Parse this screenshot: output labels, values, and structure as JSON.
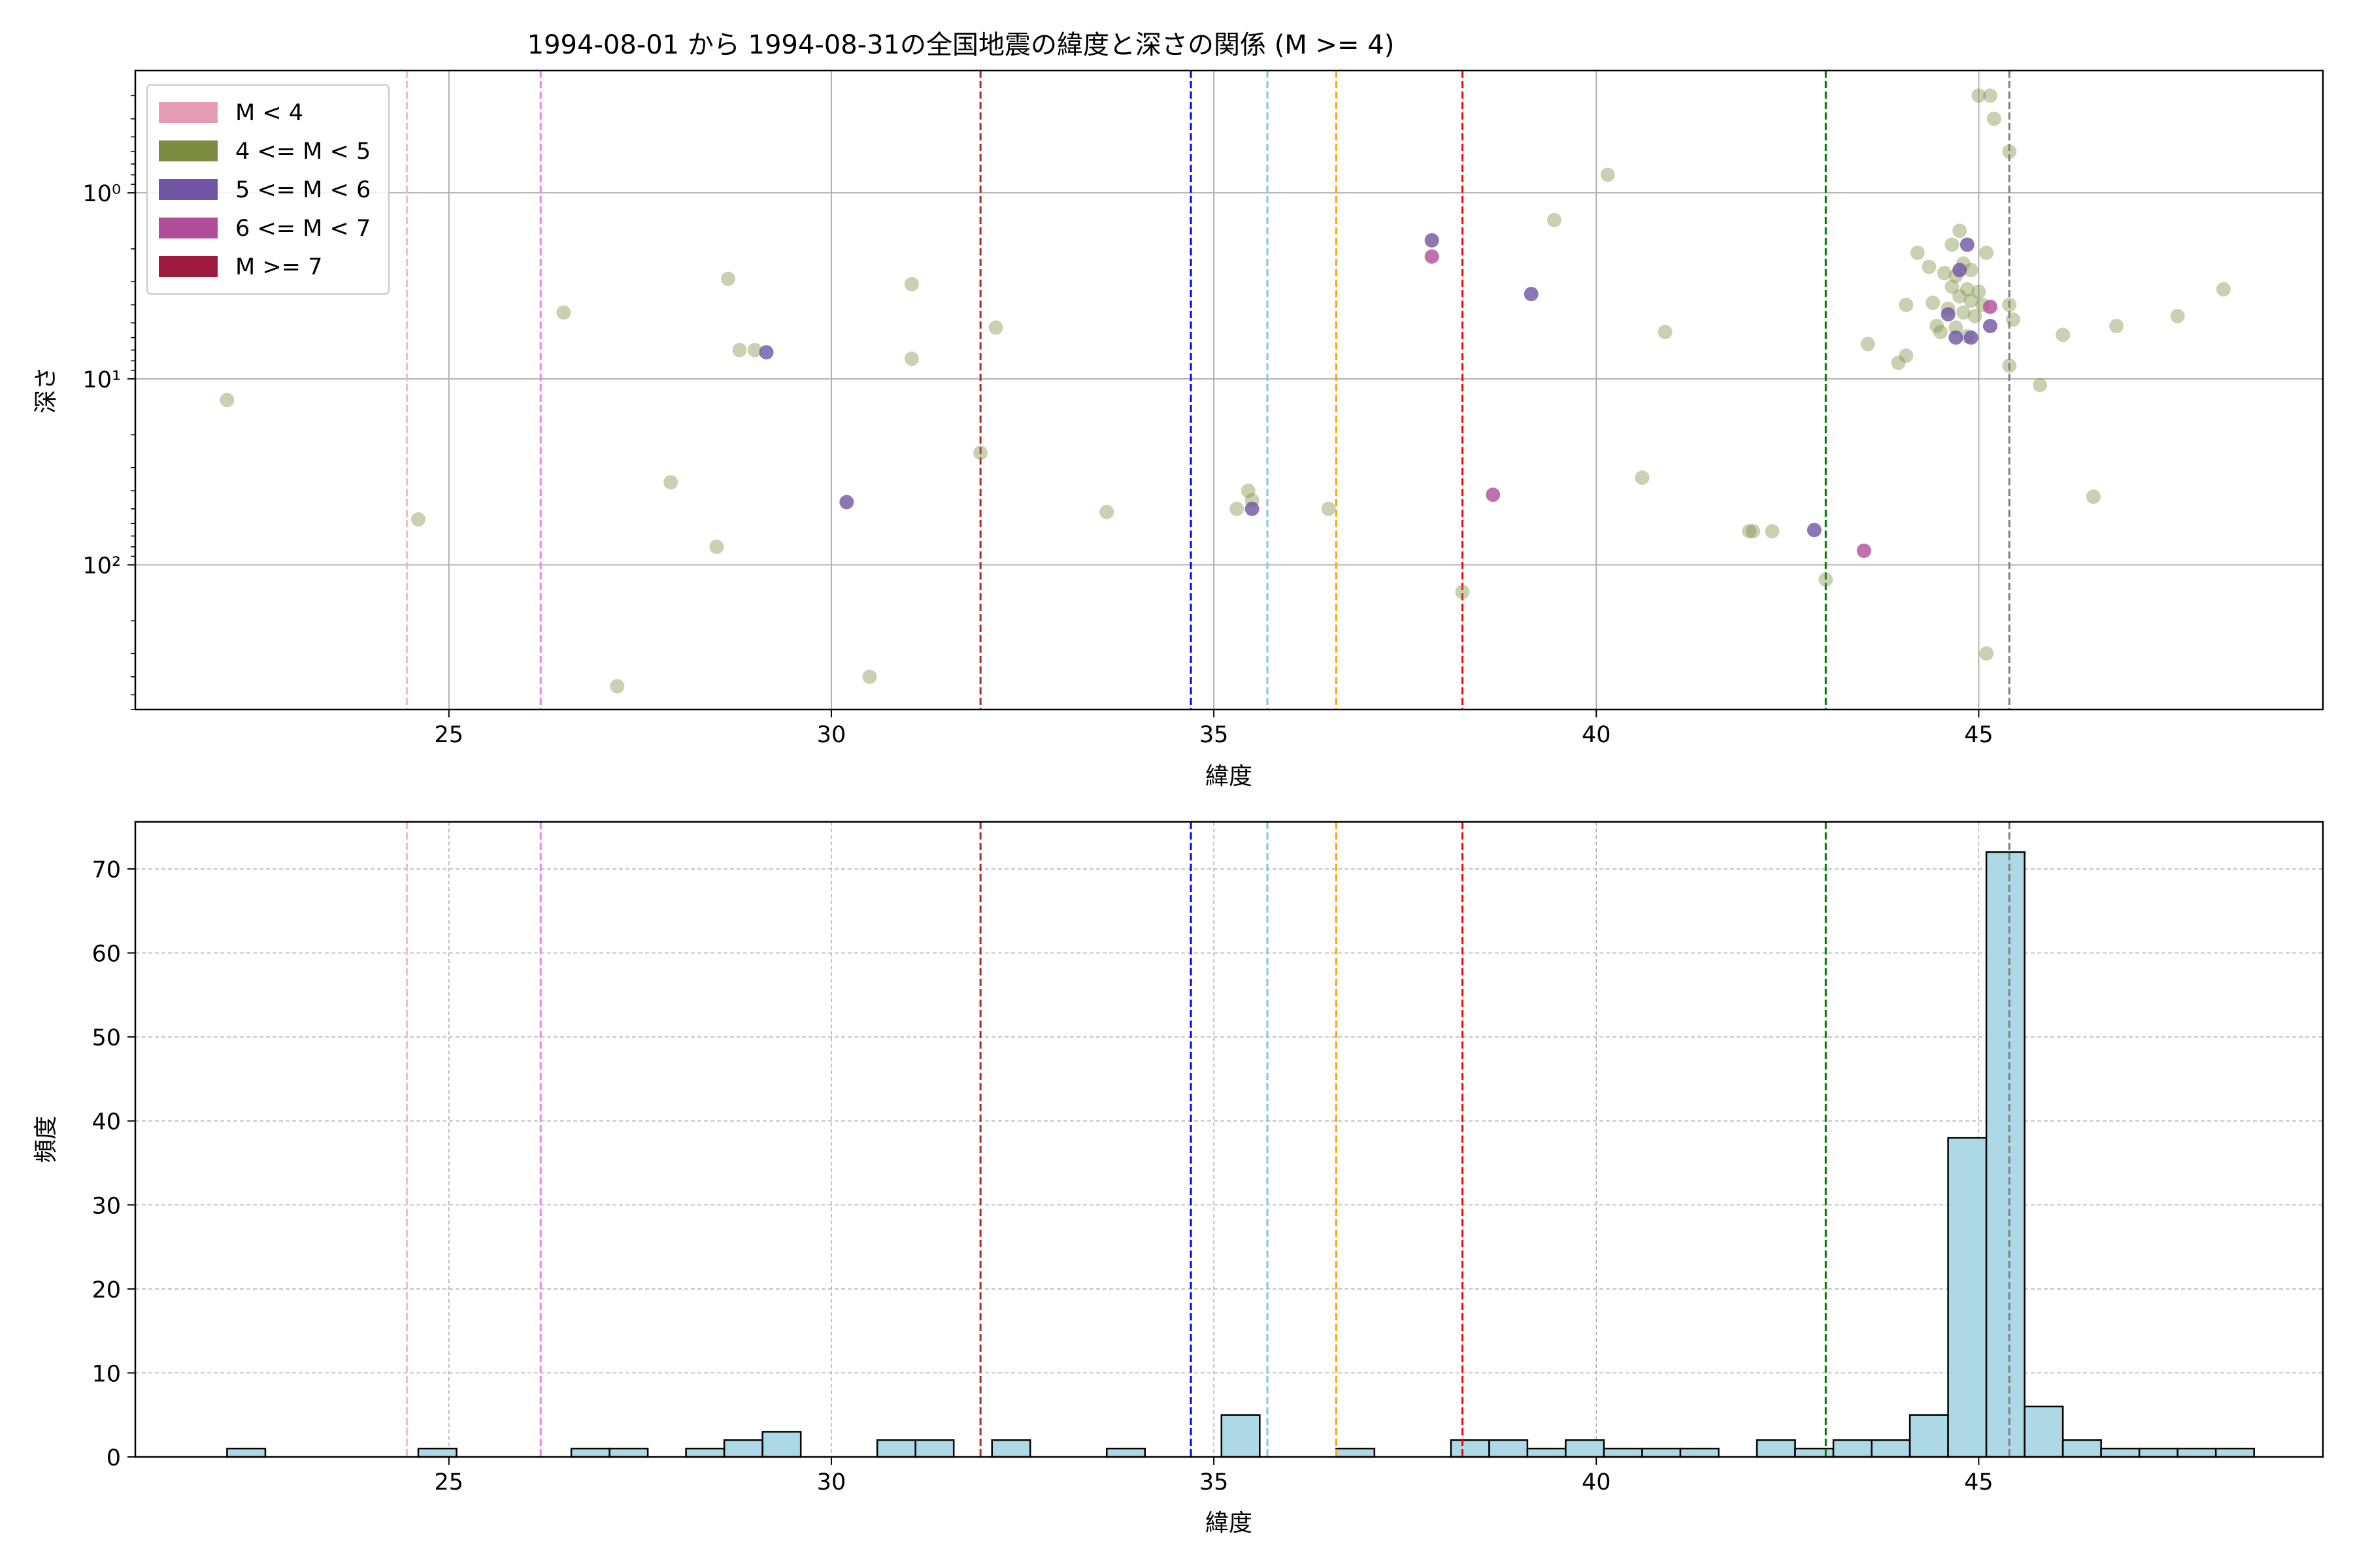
{
  "title": "1994-08-01 から 1994-08-31の全国地震の緯度と深さの関係 (M >= 4)",
  "chart_data": [
    {
      "type": "scatter",
      "xlabel": "緯度",
      "ylabel": "深さ",
      "xlim": [
        20.9,
        49.5
      ],
      "ylim": [
        600,
        0.22
      ],
      "yscale": "log",
      "y_inverted": true,
      "x_ticks": [
        25,
        30,
        35,
        40,
        45
      ],
      "x_tick_labels": [
        "25",
        "30",
        "35",
        "40",
        "45"
      ],
      "y_ticks": [
        1,
        10,
        100
      ],
      "y_tick_labels": [
        "10⁰",
        "10¹",
        "10²"
      ],
      "grid": true,
      "legend_position": "top-left",
      "legend": [
        {
          "label": "M < 4",
          "color": "#e59cb4"
        },
        {
          "label": "4 <= M < 5",
          "color": "#7b8b3f"
        },
        {
          "label": "5 <= M < 6",
          "color": "#6f55a3"
        },
        {
          "label": "6 <= M < 7",
          "color": "#b04c99"
        },
        {
          "label": "M >= 7",
          "color": "#9e1b3f"
        }
      ],
      "vlines": [
        {
          "x": 24.45,
          "color": "#ffb6c1"
        },
        {
          "x": 26.2,
          "color": "#ee82ee"
        },
        {
          "x": 31.95,
          "color": "#a52a2a"
        },
        {
          "x": 34.7,
          "color": "#0000ff"
        },
        {
          "x": 35.7,
          "color": "#7ec8e3"
        },
        {
          "x": 36.6,
          "color": "#ffa500"
        },
        {
          "x": 38.25,
          "color": "#ff0000"
        },
        {
          "x": 43.0,
          "color": "#008000"
        },
        {
          "x": 45.4,
          "color": "#808080"
        }
      ],
      "series": [
        {
          "name": "4 <= M < 5",
          "color": "#7b8b3f",
          "points": [
            [
              22.1,
              13
            ],
            [
              24.6,
              57
            ],
            [
              26.5,
              4.4
            ],
            [
              27.2,
              450
            ],
            [
              27.9,
              36
            ],
            [
              28.5,
              80
            ],
            [
              28.65,
              2.9
            ],
            [
              28.8,
              7
            ],
            [
              29.0,
              7
            ],
            [
              30.5,
              400
            ],
            [
              31.05,
              3.1
            ],
            [
              31.05,
              7.8
            ],
            [
              31.95,
              25
            ],
            [
              32.15,
              5.3
            ],
            [
              33.6,
              52
            ],
            [
              35.3,
              50
            ],
            [
              35.45,
              40
            ],
            [
              35.5,
              45
            ],
            [
              36.5,
              50
            ],
            [
              38.25,
              140
            ],
            [
              39.45,
              1.4
            ],
            [
              40.15,
              0.8
            ],
            [
              40.6,
              34
            ],
            [
              40.9,
              5.6
            ],
            [
              42.0,
              66
            ],
            [
              42.05,
              66
            ],
            [
              42.3,
              66
            ],
            [
              43.0,
              120
            ],
            [
              43.55,
              6.5
            ],
            [
              43.95,
              8.2
            ],
            [
              44.05,
              7.5
            ],
            [
              44.05,
              4.0
            ],
            [
              44.2,
              2.1
            ],
            [
              44.35,
              2.5
            ],
            [
              44.4,
              3.9
            ],
            [
              44.45,
              5.2
            ],
            [
              44.5,
              5.6
            ],
            [
              44.55,
              2.7
            ],
            [
              44.6,
              4.2
            ],
            [
              44.65,
              3.2
            ],
            [
              44.65,
              1.9
            ],
            [
              44.7,
              2.8
            ],
            [
              44.7,
              5.3
            ],
            [
              44.75,
              1.6
            ],
            [
              44.75,
              3.6
            ],
            [
              44.8,
              2.4
            ],
            [
              44.8,
              4.4
            ],
            [
              44.85,
              3.3
            ],
            [
              44.85,
              5.9
            ],
            [
              44.9,
              3.8
            ],
            [
              44.9,
              2.6
            ],
            [
              44.95,
              4.6
            ],
            [
              45.0,
              3.4
            ],
            [
              45.0,
              0.3
            ],
            [
              45.05,
              4.0
            ],
            [
              45.1,
              2.1
            ],
            [
              45.1,
              300
            ],
            [
              45.15,
              0.3
            ],
            [
              45.2,
              0.4
            ],
            [
              45.4,
              0.6
            ],
            [
              45.4,
              4.0
            ],
            [
              45.4,
              8.5
            ],
            [
              45.45,
              4.8
            ],
            [
              45.8,
              10.8
            ],
            [
              46.1,
              5.8
            ],
            [
              46.5,
              43
            ],
            [
              46.8,
              5.2
            ],
            [
              47.6,
              4.6
            ],
            [
              48.2,
              3.3
            ]
          ]
        },
        {
          "name": "5 <= M < 6",
          "color": "#6f55a3",
          "points": [
            [
              29.15,
              7.2
            ],
            [
              30.2,
              46
            ],
            [
              35.5,
              50
            ],
            [
              37.85,
              1.8
            ],
            [
              39.15,
              3.5
            ],
            [
              42.85,
              65
            ],
            [
              44.6,
              4.5
            ],
            [
              44.7,
              6.0
            ],
            [
              44.75,
              2.6
            ],
            [
              44.85,
              1.9
            ],
            [
              44.9,
              6.0
            ],
            [
              45.15,
              5.2
            ]
          ]
        },
        {
          "name": "6 <= M < 7",
          "color": "#b04c99",
          "points": [
            [
              37.85,
              2.2
            ],
            [
              38.65,
              42
            ],
            [
              43.5,
              84
            ],
            [
              45.15,
              4.1
            ]
          ]
        }
      ]
    },
    {
      "type": "bar",
      "xlabel": "緯度",
      "ylabel": "頻度",
      "xlim": [
        20.9,
        49.5
      ],
      "ylim": [
        0,
        75.6
      ],
      "x_ticks": [
        25,
        30,
        35,
        40,
        45
      ],
      "x_tick_labels": [
        "25",
        "30",
        "35",
        "40",
        "45"
      ],
      "y_ticks": [
        0,
        10,
        20,
        30,
        40,
        50,
        60,
        70
      ],
      "y_tick_labels": [
        "0",
        "10",
        "20",
        "30",
        "40",
        "50",
        "60",
        "70"
      ],
      "grid": true,
      "bar_color": "#add8e6",
      "bin_start": 22.1,
      "bin_width": 0.5,
      "bin_counts": [
        1,
        0,
        0,
        0,
        0,
        1,
        0,
        0,
        0,
        1,
        1,
        0,
        1,
        2,
        3,
        0,
        0,
        2,
        2,
        0,
        2,
        0,
        0,
        1,
        0,
        0,
        5,
        0,
        0,
        1,
        0,
        0,
        2,
        2,
        1,
        2,
        1,
        1,
        1,
        0,
        2,
        1,
        2,
        2,
        5,
        38,
        72,
        6,
        2,
        1,
        1,
        1,
        1
      ],
      "vlines": [
        {
          "x": 24.45,
          "color": "#ffb6c1"
        },
        {
          "x": 26.2,
          "color": "#ee82ee"
        },
        {
          "x": 31.95,
          "color": "#a52a2a"
        },
        {
          "x": 34.7,
          "color": "#0000ff"
        },
        {
          "x": 35.7,
          "color": "#7ec8e3"
        },
        {
          "x": 36.6,
          "color": "#ffa500"
        },
        {
          "x": 38.25,
          "color": "#ff0000"
        },
        {
          "x": 43.0,
          "color": "#008000"
        },
        {
          "x": 45.4,
          "color": "#808080"
        }
      ]
    }
  ]
}
